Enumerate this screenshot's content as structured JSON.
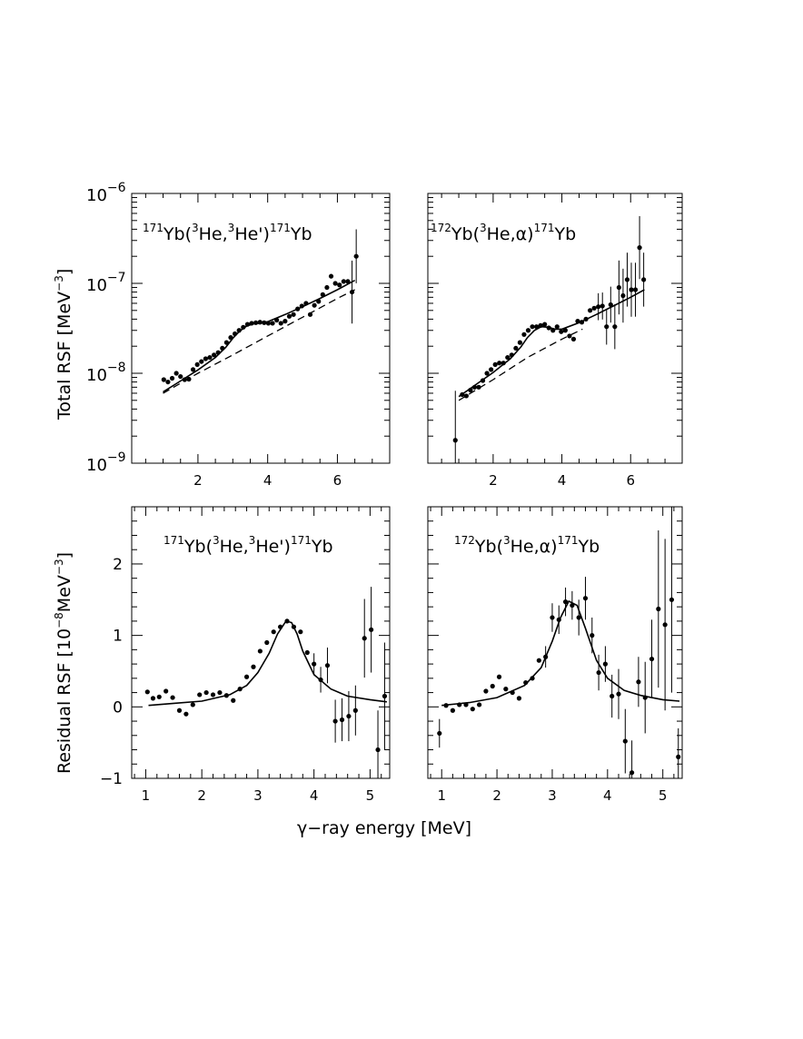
{
  "figure": {
    "xlabel": "γ−ray energy [MeV]",
    "ylabel_top": "Total RSF [MeV",
    "ylabel_top_sup": "−3",
    "ylabel_top_end": "]",
    "ylabel_bottom": "Residual RSF [10",
    "ylabel_bottom_sup": "−8",
    "ylabel_bottom_mid": "MeV",
    "ylabel_bottom_sup2": "−3",
    "ylabel_bottom_end": "]"
  },
  "chart_data": [
    {
      "id": "top-left",
      "type": "scatter",
      "yscale": "log",
      "label": {
        "pre_sup": "171",
        "a": "Yb(",
        "sup1": "3",
        "b": "He,",
        "sup2": "3",
        "c": "He')",
        "sup3": "171",
        "d": "Yb"
      },
      "xlim": [
        0.1,
        7.5
      ],
      "ylim": [
        1e-09,
        1e-06
      ],
      "xticks": [
        2,
        4,
        6
      ],
      "xtick_labels": [
        "2",
        "4",
        "6"
      ],
      "ytick_labels": [
        {
          "base": "10",
          "exp": "−9",
          "value": 1e-09
        },
        {
          "base": "10",
          "exp": "−8",
          "value": 1e-08
        },
        {
          "base": "10",
          "exp": "−7",
          "value": 1e-07
        },
        {
          "base": "10",
          "exp": "−6",
          "value": 1e-06
        }
      ],
      "series": [
        {
          "name": "data",
          "x": [
            1.02,
            1.14,
            1.26,
            1.38,
            1.5,
            1.62,
            1.74,
            1.86,
            1.98,
            2.1,
            2.22,
            2.34,
            2.46,
            2.58,
            2.7,
            2.82,
            2.94,
            3.06,
            3.18,
            3.3,
            3.42,
            3.54,
            3.66,
            3.78,
            3.9,
            4.02,
            4.14,
            4.26,
            4.38,
            4.5,
            4.62,
            4.74,
            4.86,
            4.98,
            5.1,
            5.22,
            5.34,
            5.46,
            5.58,
            5.7,
            5.82,
            5.94,
            6.06,
            6.18,
            6.3,
            6.42,
            6.54
          ],
          "y": [
            8.5e-09,
            8e-09,
            8.8e-09,
            1e-08,
            9.2e-09,
            8.5e-09,
            8.6e-09,
            1.1e-08,
            1.25e-08,
            1.35e-08,
            1.45e-08,
            1.5e-08,
            1.6e-08,
            1.7e-08,
            1.9e-08,
            2.2e-08,
            2.5e-08,
            2.75e-08,
            3e-08,
            3.25e-08,
            3.5e-08,
            3.6e-08,
            3.65e-08,
            3.7e-08,
            3.65e-08,
            3.6e-08,
            3.6e-08,
            3.9e-08,
            3.6e-08,
            3.8e-08,
            4.3e-08,
            4.5e-08,
            5.2e-08,
            5.6e-08,
            6e-08,
            4.5e-08,
            5.7e-08,
            6.3e-08,
            7.5e-08,
            9e-08,
            1.2e-07,
            1e-07,
            9.6e-08,
            1.05e-07,
            1.05e-07,
            8e-08,
            2e-07
          ],
          "err": [
            0,
            0,
            0,
            0,
            0,
            0,
            0,
            0,
            0,
            0,
            0,
            0,
            0,
            0,
            0,
            0,
            0,
            0,
            0,
            0,
            0,
            0,
            0,
            0,
            0,
            0,
            0,
            0,
            0,
            0,
            0,
            0,
            0,
            0,
            0,
            0,
            0,
            0,
            0,
            0,
            0,
            0,
            0,
            0,
            0,
            0.35,
            0.3
          ]
        },
        {
          "name": "fit",
          "style": "solid",
          "x": [
            1.0,
            1.5,
            2.0,
            2.5,
            2.8,
            3.0,
            3.2,
            3.4,
            3.6,
            3.8,
            4.0,
            4.5,
            5.0,
            5.5,
            6.0,
            6.5
          ],
          "y": [
            6.2e-09,
            8.2e-09,
            1.09e-08,
            1.5e-08,
            1.95e-08,
            2.45e-08,
            2.95e-08,
            3.35e-08,
            3.55e-08,
            3.6e-08,
            3.75e-08,
            4.5e-08,
            5.5e-08,
            6.8e-08,
            8.5e-08,
            1.08e-07
          ]
        },
        {
          "name": "background",
          "style": "dashed",
          "x": [
            1.0,
            2.0,
            3.0,
            4.0,
            5.0,
            6.0,
            6.5
          ],
          "y": [
            6e-09,
            1e-08,
            1.6e-08,
            2.6e-08,
            4.2e-08,
            6.8e-08,
            8.5e-08
          ]
        }
      ]
    },
    {
      "id": "top-right",
      "type": "scatter",
      "yscale": "log",
      "label": {
        "pre_sup": "172",
        "a": "Yb(",
        "sup1": "3",
        "b": "He,α)",
        "sup2": "",
        "c": "",
        "sup3": "171",
        "d": "Yb"
      },
      "xlim": [
        0.1,
        7.5
      ],
      "ylim": [
        1e-09,
        1e-06
      ],
      "xticks": [
        2,
        4,
        6
      ],
      "xtick_labels": [
        "2",
        "4",
        "6"
      ],
      "series": [
        {
          "name": "data",
          "x": [
            0.9,
            1.1,
            1.22,
            1.34,
            1.46,
            1.58,
            1.7,
            1.82,
            1.94,
            2.06,
            2.18,
            2.3,
            2.42,
            2.54,
            2.66,
            2.78,
            2.9,
            3.02,
            3.14,
            3.26,
            3.38,
            3.5,
            3.62,
            3.74,
            3.86,
            3.98,
            4.1,
            4.22,
            4.34,
            4.46,
            4.58,
            4.7,
            4.82,
            4.94,
            5.06,
            5.18,
            5.3,
            5.42,
            5.54,
            5.66,
            5.78,
            5.9,
            6.02,
            6.14,
            6.26,
            6.38
          ],
          "y": [
            1.8e-09,
            5.8e-09,
            5.6e-09,
            6.5e-09,
            7e-09,
            7e-09,
            8.3e-09,
            1e-08,
            1.1e-08,
            1.25e-08,
            1.3e-08,
            1.3e-08,
            1.5e-08,
            1.6e-08,
            1.9e-08,
            2.2e-08,
            2.7e-08,
            3e-08,
            3.3e-08,
            3.3e-08,
            3.4e-08,
            3.5e-08,
            3.2e-08,
            3e-08,
            3.3e-08,
            2.9e-08,
            3e-08,
            2.6e-08,
            2.4e-08,
            3.8e-08,
            3.7e-08,
            4e-08,
            5e-08,
            5.3e-08,
            5.5e-08,
            5.6e-08,
            3.3e-08,
            5.8e-08,
            3.3e-08,
            9e-08,
            7.3e-08,
            1.1e-07,
            8.5e-08,
            8.5e-08,
            2.5e-07,
            1.1e-07
          ],
          "err": [
            0.55,
            0,
            0,
            0,
            0,
            0,
            0,
            0,
            0,
            0,
            0,
            0,
            0,
            0,
            0,
            0,
            0,
            0,
            0,
            0,
            0,
            0,
            0,
            0,
            0,
            0,
            0,
            0,
            0,
            0,
            0,
            0,
            0,
            0,
            0.15,
            0.15,
            0.2,
            0.2,
            0.25,
            0.3,
            0.3,
            0.3,
            0.3,
            0.3,
            0.35,
            0.3
          ]
        },
        {
          "name": "fit",
          "style": "solid",
          "x": [
            1.0,
            1.5,
            2.0,
            2.5,
            2.8,
            3.0,
            3.2,
            3.4,
            3.6,
            3.8,
            4.0,
            4.5,
            5.0,
            5.5,
            6.0,
            6.4
          ],
          "y": [
            5.5e-09,
            7.5e-09,
            1.02e-08,
            1.45e-08,
            1.95e-08,
            2.5e-08,
            3e-08,
            3.3e-08,
            3.25e-08,
            3.1e-08,
            3.1e-08,
            3.65e-08,
            4.5e-08,
            5.6e-08,
            7e-08,
            8.5e-08
          ]
        },
        {
          "name": "background",
          "style": "dashed",
          "x": [
            1.0,
            2.0,
            3.0,
            4.0,
            4.6
          ],
          "y": [
            5e-09,
            8.5e-09,
            1.5e-08,
            2.4e-08,
            3.1e-08
          ]
        }
      ]
    },
    {
      "id": "bottom-left",
      "type": "scatter",
      "yscale": "linear",
      "label": {
        "pre_sup": "171",
        "a": "Yb(",
        "sup1": "3",
        "b": "He,",
        "sup2": "3",
        "c": "He')",
        "sup3": "171",
        "d": "Yb"
      },
      "xlim": [
        0.75,
        5.35
      ],
      "ylim": [
        -1,
        2.8
      ],
      "xticks": [
        1,
        2,
        3,
        4,
        5
      ],
      "xtick_labels": [
        "1",
        "2",
        "3",
        "4",
        "5"
      ],
      "yticks": [
        -1,
        0,
        1,
        2
      ],
      "ytick_labels": [
        "−1",
        "0",
        "1",
        "2"
      ],
      "series": [
        {
          "name": "data",
          "x": [
            1.03,
            1.13,
            1.24,
            1.36,
            1.48,
            1.6,
            1.72,
            1.84,
            1.96,
            2.08,
            2.2,
            2.32,
            2.44,
            2.56,
            2.68,
            2.8,
            2.92,
            3.04,
            3.16,
            3.28,
            3.4,
            3.52,
            3.64,
            3.76,
            3.88,
            4.0,
            4.12,
            4.24,
            4.38,
            4.5,
            4.62,
            4.74,
            4.9,
            5.02,
            5.14,
            5.26
          ],
          "y": [
            0.21,
            0.12,
            0.14,
            0.22,
            0.13,
            -0.05,
            -0.1,
            0.03,
            0.17,
            0.2,
            0.17,
            0.2,
            0.16,
            0.09,
            0.25,
            0.42,
            0.56,
            0.78,
            0.9,
            1.05,
            1.12,
            1.2,
            1.12,
            1.05,
            0.76,
            0.6,
            0.38,
            0.58,
            -0.2,
            -0.18,
            -0.13,
            -0.05,
            0.96,
            1.08,
            -0.6,
            0.15
          ],
          "err": [
            0,
            0,
            0,
            0,
            0,
            0,
            0,
            0,
            0,
            0,
            0,
            0,
            0,
            0,
            0,
            0,
            0,
            0,
            0,
            0,
            0,
            0,
            0,
            0,
            0,
            0.15,
            0.18,
            0.25,
            0.3,
            0.3,
            0.35,
            0.35,
            0.55,
            0.6,
            0.55,
            0.75
          ]
        },
        {
          "name": "fit",
          "style": "solid",
          "x": [
            1.05,
            1.5,
            2.0,
            2.5,
            2.8,
            3.0,
            3.2,
            3.35,
            3.5,
            3.6,
            3.7,
            3.8,
            4.0,
            4.3,
            4.6,
            5.0,
            5.3
          ],
          "y": [
            0.02,
            0.05,
            0.08,
            0.17,
            0.3,
            0.48,
            0.75,
            1.02,
            1.2,
            1.18,
            1.02,
            0.78,
            0.45,
            0.25,
            0.15,
            0.1,
            0.07
          ]
        }
      ]
    },
    {
      "id": "bottom-right",
      "type": "scatter",
      "yscale": "linear",
      "label": {
        "pre_sup": "172",
        "a": "Yb(",
        "sup1": "3",
        "b": "He,α)",
        "sup2": "",
        "c": "",
        "sup3": "171",
        "d": "Yb"
      },
      "xlim": [
        0.75,
        5.35
      ],
      "ylim": [
        -1,
        2.8
      ],
      "xticks": [
        1,
        2,
        3,
        4,
        5
      ],
      "xtick_labels": [
        "1",
        "2",
        "3",
        "4",
        "5"
      ],
      "yticks": [
        -1,
        0,
        1,
        2
      ],
      "ytick_labels": [
        "−1",
        "0",
        "1",
        "2"
      ],
      "series": [
        {
          "name": "data",
          "x": [
            0.96,
            1.08,
            1.2,
            1.32,
            1.44,
            1.56,
            1.68,
            1.8,
            1.92,
            2.04,
            2.16,
            2.28,
            2.4,
            2.52,
            2.64,
            2.76,
            2.88,
            3.0,
            3.12,
            3.24,
            3.36,
            3.48,
            3.6,
            3.72,
            3.84,
            3.96,
            4.08,
            4.2,
            4.32,
            4.44,
            4.56,
            4.68,
            4.8,
            4.92,
            5.04,
            5.16,
            5.28
          ],
          "y": [
            -0.37,
            0.02,
            -0.05,
            0.03,
            0.03,
            -0.03,
            0.03,
            0.22,
            0.29,
            0.42,
            0.25,
            0.2,
            0.12,
            0.34,
            0.4,
            0.65,
            0.7,
            1.25,
            1.22,
            1.47,
            1.42,
            1.25,
            1.52,
            1.0,
            0.48,
            0.6,
            0.15,
            0.18,
            -0.48,
            -0.92,
            0.35,
            0.13,
            0.67,
            1.37,
            1.15,
            1.5,
            -0.7
          ],
          "err": [
            0.2,
            0,
            0,
            0,
            0,
            0,
            0,
            0,
            0,
            0,
            0,
            0,
            0,
            0,
            0,
            0,
            0.15,
            0.2,
            0.2,
            0.2,
            0.2,
            0.25,
            0.3,
            0.25,
            0.25,
            0.25,
            0.3,
            0.35,
            0.45,
            0.45,
            0.35,
            0.5,
            0.55,
            1.1,
            1.2,
            1.3,
            0.4
          ]
        },
        {
          "name": "fit",
          "style": "solid",
          "x": [
            1.0,
            1.5,
            2.0,
            2.5,
            2.8,
            3.0,
            3.15,
            3.3,
            3.45,
            3.6,
            3.8,
            4.0,
            4.3,
            4.6,
            5.0,
            5.3
          ],
          "y": [
            0.02,
            0.06,
            0.13,
            0.3,
            0.55,
            0.92,
            1.25,
            1.48,
            1.42,
            1.1,
            0.65,
            0.4,
            0.23,
            0.16,
            0.1,
            0.08
          ]
        }
      ]
    }
  ]
}
